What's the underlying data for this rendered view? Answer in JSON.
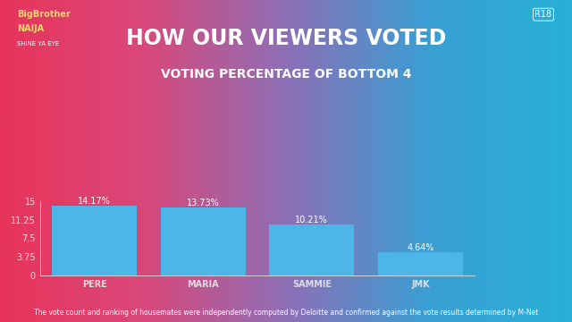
{
  "chart_data": {
    "type": "bar",
    "title": "HOW OUR VIEWERS VOTED",
    "subtitle": "VOTING PERCENTAGE OF BOTTOM 4",
    "categories": [
      "PERE",
      "MARIA",
      "SAMMIE",
      "JMK"
    ],
    "values": [
      14.17,
      13.73,
      10.21,
      4.64
    ],
    "value_labels": [
      "14.17%",
      "13.73%",
      "10.21%",
      "4.64%"
    ],
    "data_labels": true,
    "color": "#4db6e8",
    "ylim": [
      0,
      15
    ],
    "yticks": [
      0,
      3.75,
      7.5,
      11.25,
      15
    ],
    "grid": false,
    "annotations": [
      "The vote count and ranking of housemates were independently computed by Deloitte and confirmed against the vote results determined by M-Net",
      "BigBrother",
      "NAIJA",
      "SHINE YA EYE",
      "R18"
    ]
  }
}
